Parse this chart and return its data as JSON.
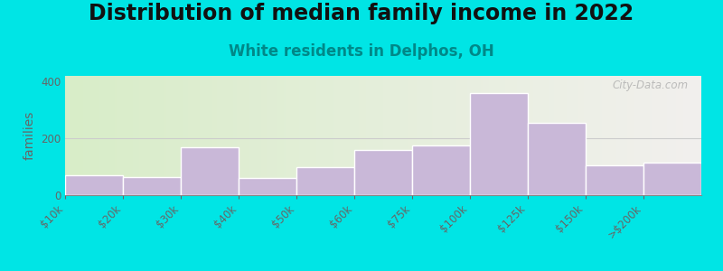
{
  "title": "Distribution of median family income in 2022",
  "subtitle": "White residents in Delphos, OH",
  "ylabel": "families",
  "categories": [
    "$10k",
    "$20k",
    "$30k",
    "$40k",
    "$50k",
    "$60k",
    "$75k",
    "$100k",
    "$125k",
    "$150k",
    ">$200k"
  ],
  "values": [
    70,
    65,
    170,
    60,
    100,
    160,
    175,
    360,
    255,
    105,
    115
  ],
  "bar_color": "#c9b8d8",
  "bar_edge_color": "#ffffff",
  "ylim": [
    0,
    420
  ],
  "yticks": [
    0,
    200,
    400
  ],
  "background_outer": "#00e5e5",
  "background_left": "#d8edc8",
  "background_right": "#f0f0ec",
  "title_fontsize": 17,
  "subtitle_fontsize": 12,
  "subtitle_color": "#008888",
  "ylabel_fontsize": 10,
  "tick_label_fontsize": 8.5,
  "watermark": "City-Data.com"
}
